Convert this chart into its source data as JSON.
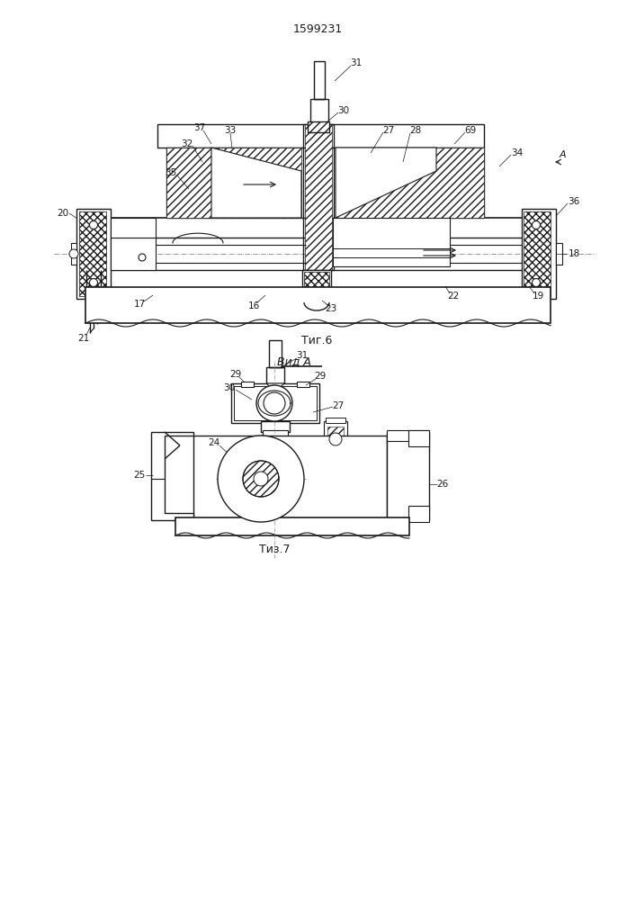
{
  "title": "1599231",
  "bg": "#ffffff",
  "lc": "#1a1a1a",
  "fig6_label": "Τиг.6",
  "fig7_label": "Τиз.7",
  "vida_label": "Вид A"
}
